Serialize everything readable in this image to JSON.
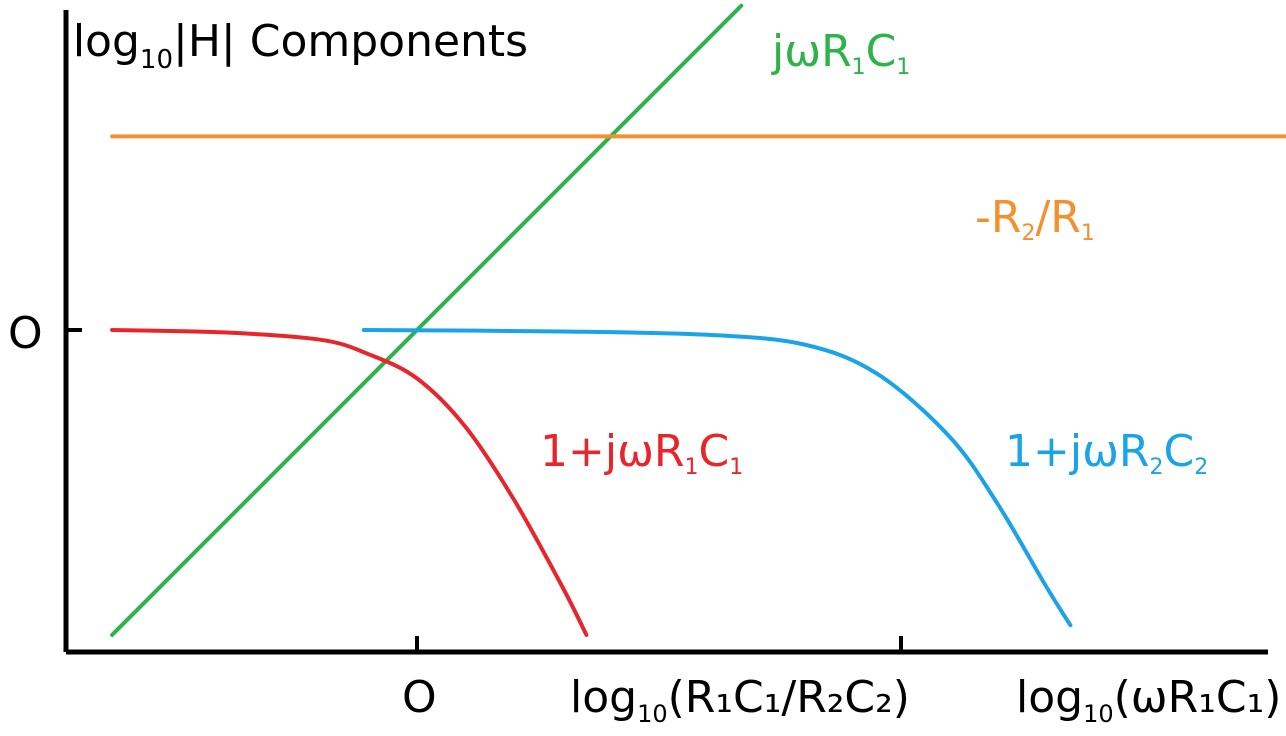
{
  "title": {
    "prefix": "|log",
    "subscript": "10",
    "suffix": "|H| Components"
  },
  "y_axis": {
    "zero_label": "O"
  },
  "x_axis": {
    "tick_labels": [
      {
        "text": "O"
      },
      {
        "prefix": "log",
        "subscript": "10",
        "argument": "(R₁C₁/R₂C₂)"
      }
    ],
    "axis_label": {
      "prefix": "log",
      "subscript": "10",
      "argument": "(ωR₁C₁)"
    }
  },
  "chart_data": {
    "type": "line",
    "title": "|log10|H| Components",
    "xlabel": "log10(ωR1C1)",
    "ylabel": "",
    "x_ticks": [
      "0",
      "log10(R1C1/R2C2)"
    ],
    "y_ticks": [
      "0"
    ],
    "x_range": [
      -0.7,
      1.9
    ],
    "y_range": [
      -0.7,
      0.75
    ],
    "grid": false,
    "series": [
      {
        "name": "jωR₁C₁",
        "color": "#2db34a",
        "kind": "asymptote",
        "x": [
          -0.63,
          0.67
        ],
        "y": [
          -0.63,
          0.67
        ]
      },
      {
        "name": "-R₂/R₁",
        "color": "#f39130",
        "kind": "constant",
        "x": [
          -0.63,
          1.82
        ],
        "y": [
          0.4,
          0.4
        ]
      },
      {
        "name": "1+jωR₁C₁",
        "color": "#e8252b",
        "kind": "curve",
        "x": [
          -0.63,
          -0.4,
          -0.2,
          -0.1,
          0.0,
          0.1,
          0.2,
          0.3,
          0.35
        ],
        "y": [
          0.0,
          -0.005,
          -0.02,
          -0.05,
          -0.1,
          -0.2,
          -0.35,
          -0.53,
          -0.63
        ]
      },
      {
        "name": "1+jωR₂C₂",
        "color": "#1aa3e6",
        "kind": "curve",
        "x": [
          -0.11,
          0.3,
          0.6,
          0.8,
          0.95,
          1.1,
          1.2,
          1.3,
          1.35
        ],
        "y": [
          0.0,
          -0.003,
          -0.01,
          -0.03,
          -0.09,
          -0.22,
          -0.36,
          -0.53,
          -0.61
        ]
      }
    ]
  },
  "labels": {
    "green": {
      "main": "jωR",
      "sub1": "1",
      "mid": "C",
      "sub2": "1"
    },
    "orange": {
      "main": "-R",
      "sub1": "2",
      "mid": "/R",
      "sub2": "1"
    },
    "red": {
      "main": "1+jωR",
      "sub1": "1",
      "mid": "C",
      "sub2": "1"
    },
    "blue": {
      "main": "1+jωR",
      "sub1": "2",
      "mid": "C",
      "sub2": "2"
    }
  }
}
